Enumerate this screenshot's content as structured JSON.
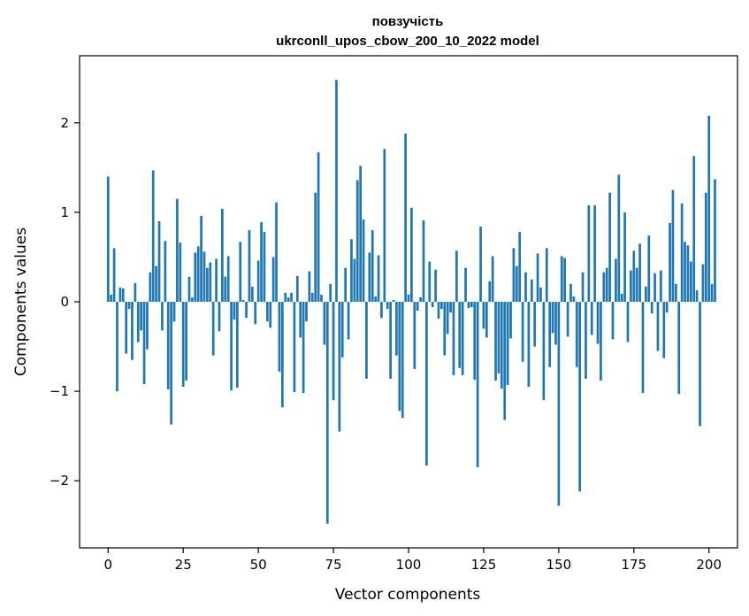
{
  "chart_data": {
    "type": "bar",
    "title": "повзучість",
    "subtitle": "ukrconll_upos_cbow_200_10_2022 model",
    "xlabel": "Vector components",
    "ylabel": "Components values",
    "xlim": [
      -9.5,
      209.5
    ],
    "ylim": [
      -2.75,
      2.75
    ],
    "xticks": [
      0,
      25,
      50,
      75,
      100,
      125,
      150,
      175,
      200
    ],
    "yticks": [
      -2,
      -1,
      0,
      1,
      2
    ],
    "ytick_labels": [
      "−2",
      "−1",
      "0",
      "1",
      "2"
    ],
    "grid": false,
    "values": [
      1.4,
      0.08,
      0.6,
      -1.0,
      0.16,
      0.15,
      -0.58,
      -0.08,
      -0.65,
      0.21,
      -0.45,
      -0.32,
      -0.92,
      -0.53,
      0.33,
      1.47,
      0.4,
      0.9,
      -0.32,
      0.68,
      -0.98,
      -1.37,
      -0.22,
      1.15,
      0.66,
      -0.95,
      -0.88,
      0.28,
      0.05,
      0.55,
      0.62,
      0.96,
      0.56,
      0.38,
      0.44,
      -0.6,
      0.48,
      -0.33,
      1.04,
      0.28,
      0.51,
      -0.99,
      -0.2,
      -0.96,
      0.67,
      0.02,
      -0.18,
      0.8,
      0.17,
      -0.25,
      0.46,
      0.89,
      0.78,
      -0.22,
      -0.29,
      0.5,
      1.11,
      -0.78,
      -1.18,
      0.1,
      0.05,
      0.1,
      -1.01,
      0.29,
      -0.4,
      -1.02,
      -0.22,
      0.34,
      0.1,
      1.22,
      1.67,
      0.08,
      -0.48,
      -2.48,
      0.2,
      -1.1,
      2.48,
      -1.45,
      -0.62,
      0.38,
      -0.42,
      0.7,
      0.48,
      1.36,
      1.52,
      0.92,
      -0.86,
      0.55,
      0.8,
      0.06,
      0.52,
      -0.18,
      1.71,
      -0.08,
      -0.86,
      0.02,
      -0.6,
      -1.22,
      -1.3,
      1.88,
      0.08,
      1.05,
      -0.75,
      -0.1,
      0.05,
      0.91,
      -1.83,
      0.45,
      -0.06,
      0.36,
      -0.19,
      -0.08,
      -0.6,
      -0.36,
      -0.12,
      -0.82,
      0.57,
      -0.74,
      -0.82,
      0.38,
      -0.07,
      -0.06,
      -0.87,
      -1.85,
      0.84,
      -0.3,
      -0.4,
      0.23,
      0.51,
      -0.88,
      -0.8,
      -0.97,
      -1.32,
      -0.93,
      -0.41,
      0.6,
      0.4,
      0.78,
      -0.67,
      0.33,
      -0.95,
      0.25,
      -0.5,
      0.54,
      0.16,
      -1.1,
      0.6,
      -0.73,
      -0.35,
      -0.48,
      -2.28,
      0.51,
      0.49,
      -0.39,
      0.2,
      0.06,
      -0.73,
      -2.12,
      0.33,
      -0.86,
      1.08,
      -0.37,
      1.08,
      -0.47,
      -0.88,
      0.33,
      0.38,
      1.22,
      -0.42,
      0.48,
      1.42,
      0.09,
      1.0,
      -0.45,
      0.35,
      0.57,
      0.38,
      0.65,
      -1.02,
      0.17,
      0.74,
      -0.13,
      0.32,
      -0.55,
      0.35,
      -0.63,
      -0.12,
      0.88,
      1.25,
      0.2,
      -1.03,
      1.1,
      0.67,
      0.63,
      0.45,
      1.63,
      0.13,
      -1.39,
      0.42,
      1.22,
      2.08,
      0.2,
      1.37
    ]
  }
}
